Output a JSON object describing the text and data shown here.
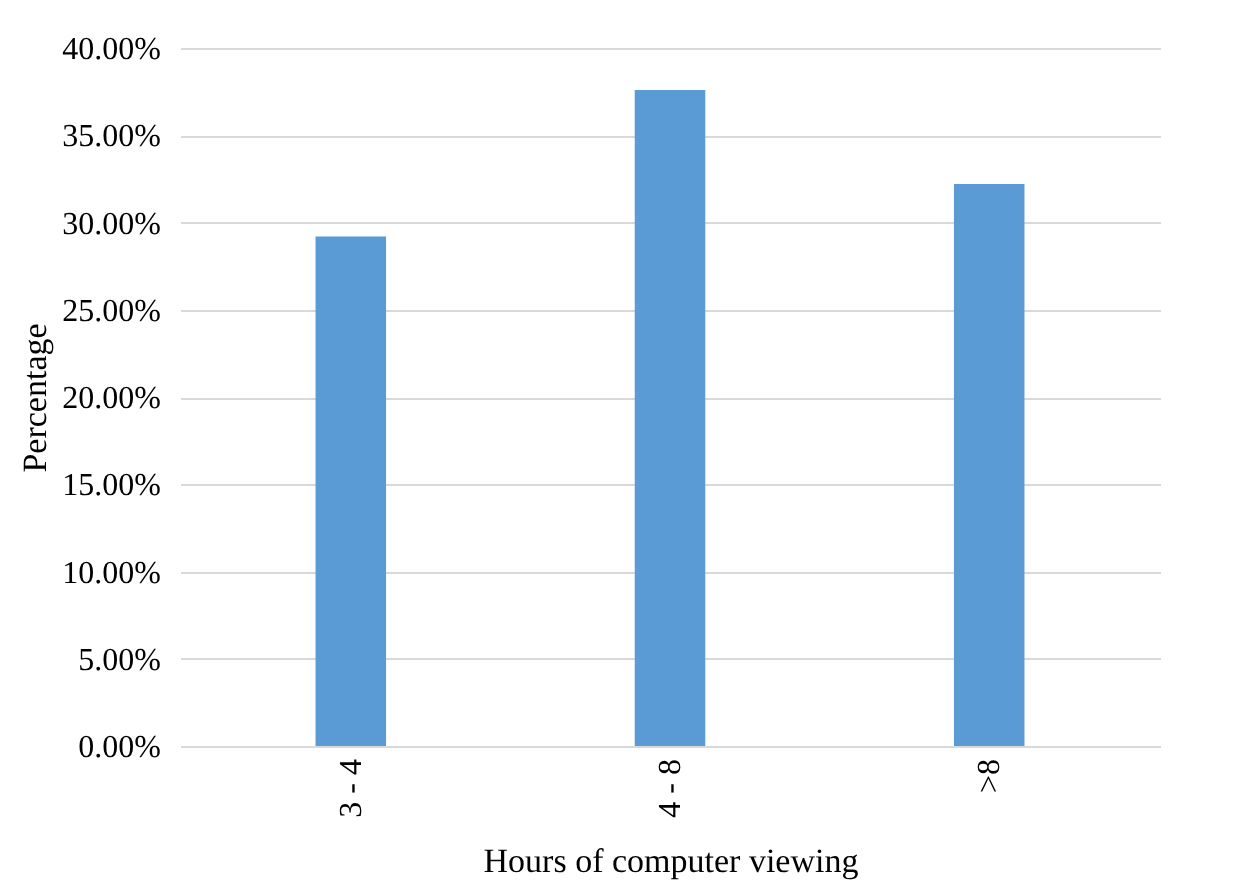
{
  "chart_data": {
    "type": "bar",
    "xlabel": "Hours of computer viewing",
    "ylabel": "Percentage",
    "categories": [
      "3 - 4",
      "4 - 8",
      ">8"
    ],
    "values": [
      29.2,
      37.6,
      32.2
    ],
    "color": "#5b9bd5",
    "ylim": [
      0,
      40
    ],
    "yticks": [
      {
        "value": 0,
        "label": "0.00%"
      },
      {
        "value": 5,
        "label": "5.00%"
      },
      {
        "value": 10,
        "label": "10.00%"
      },
      {
        "value": 15,
        "label": "15.00%"
      },
      {
        "value": 20,
        "label": "20.00%"
      },
      {
        "value": 25,
        "label": "25.00%"
      },
      {
        "value": 30,
        "label": "30.00%"
      },
      {
        "value": 35,
        "label": "35.00%"
      },
      {
        "value": 40,
        "label": "40.00%"
      }
    ],
    "grid": "y"
  }
}
